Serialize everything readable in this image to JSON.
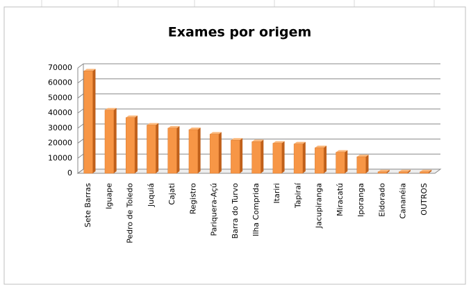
{
  "chart_data": {
    "type": "bar",
    "title": "Exames por origem",
    "categories": [
      "Sete Barras",
      "Iguape",
      "Pedro de Toledo",
      "Juquiá",
      "Cajati",
      "Registro",
      "Pariquera-Açú",
      "Barra do Turvo",
      "Ilha Comprida",
      "Itariri",
      "Tapiraí",
      "Jacupiranga",
      "Miracatú",
      "Iporanga",
      "Eldorado",
      "Cananéia",
      "OUTROS"
    ],
    "values": [
      68000,
      42000,
      37000,
      32000,
      30000,
      29000,
      26000,
      22000,
      21000,
      20000,
      19500,
      17000,
      14000,
      11000,
      1000,
      1000,
      1000
    ],
    "color": "#f79646",
    "ylim": [
      0,
      70000
    ],
    "yticks": [
      0,
      10000,
      20000,
      30000,
      40000,
      50000,
      60000,
      70000
    ],
    "grid": true
  }
}
